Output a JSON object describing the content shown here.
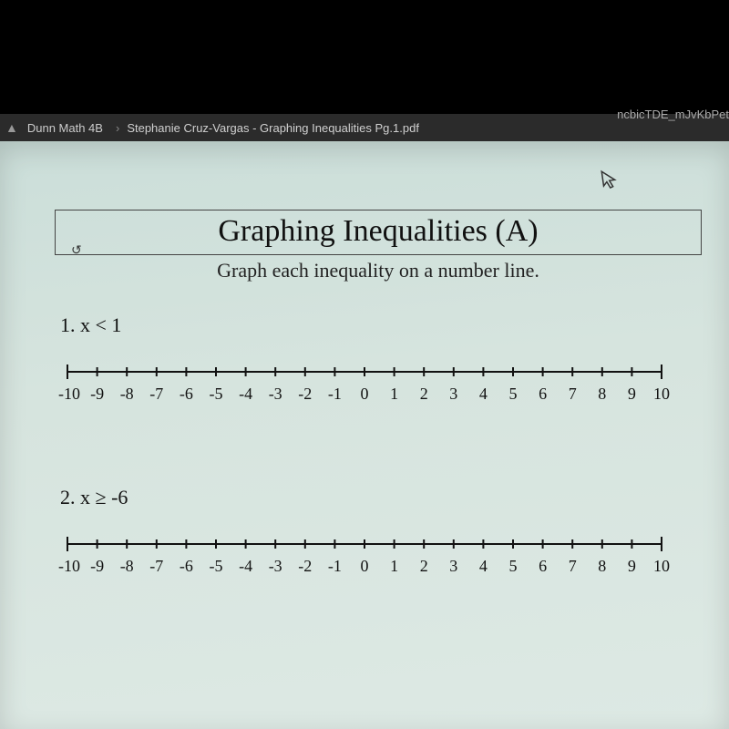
{
  "tab": {
    "folder_name": "Dunn Math 4B",
    "file_name": "Stephanie Cruz-Vargas - Graphing Inequalities Pg.1.pdf",
    "url_fragment_top": "ncbicTDE_mJvKbPet"
  },
  "worksheet": {
    "title": "Graphing Inequalities (A)",
    "subtitle": "Graph each inequality on a number line.",
    "problems": [
      {
        "number": "1.",
        "expression": "x < 1"
      },
      {
        "number": "2.",
        "expression": "x ≥ -6"
      }
    ],
    "numberline": {
      "min": -10,
      "max": 10,
      "tick_step": 1,
      "labels": [
        "-10",
        "-9",
        "-8",
        "-7",
        "-6",
        "-5",
        "-4",
        "-3",
        "-2",
        "-1",
        "0",
        "1",
        "2",
        "3",
        "4",
        "5",
        "6",
        "7",
        "8",
        "9",
        "10"
      ],
      "line_color": "#111111",
      "tick_height": 10,
      "label_fontsize": 18,
      "label_font": "Georgia, serif",
      "end_tick_height": 16
    }
  },
  "colors": {
    "page_bg_top": "#cbded9",
    "page_bg_bottom": "#dde9e4",
    "tabbar_bg": "#2b2b2b",
    "tabbar_text": "#bbbbbb",
    "text": "#111111",
    "border": "#444444"
  }
}
